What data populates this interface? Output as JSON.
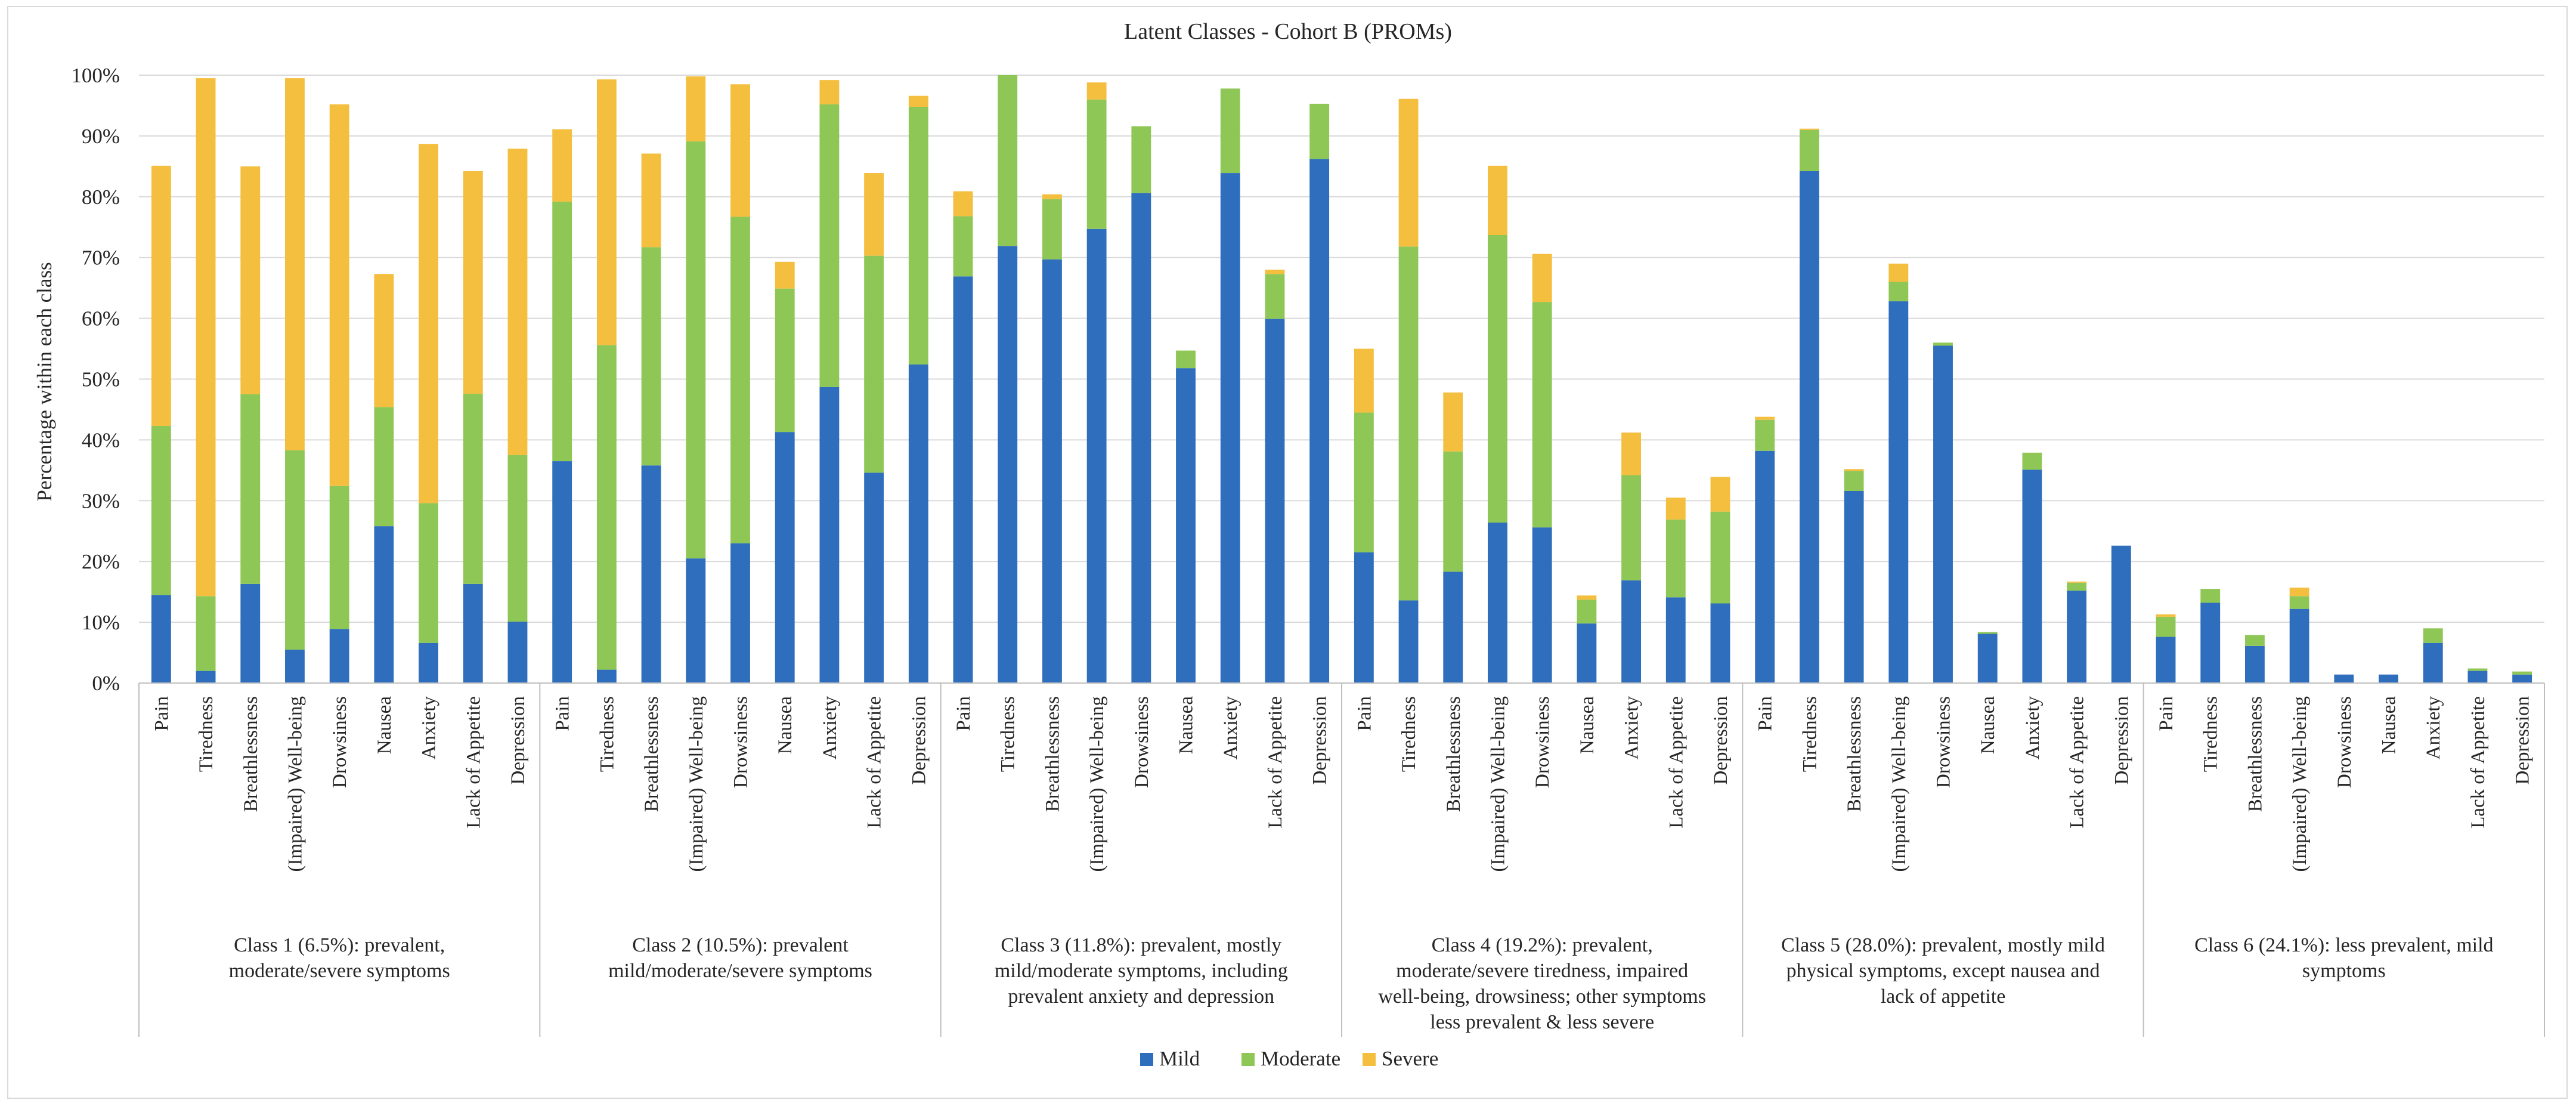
{
  "chart_data": {
    "type": "bar",
    "stacked": true,
    "title": "Latent Classes - Cohort B (PROMs)",
    "ylabel": "Percentage within each class",
    "xlabel": "",
    "ylim": [
      0,
      100
    ],
    "y_unit": "%",
    "y_ticks": [
      "0%",
      "10%",
      "20%",
      "30%",
      "40%",
      "50%",
      "60%",
      "70%",
      "80%",
      "90%",
      "100%"
    ],
    "grid": true,
    "legend_position": "bottom",
    "colors": {
      "Mild": "#2E6EBC",
      "Moderate": "#8FC757",
      "Severe": "#F4BE3E"
    },
    "series_names": [
      "Mild",
      "Moderate",
      "Severe"
    ],
    "categories": [
      "Pain",
      "Tiredness",
      "Breathlessness",
      "(Impaired) Well-being",
      "Drowsiness",
      "Nausea",
      "Anxiety",
      "Lack of Appetite",
      "Depression"
    ],
    "groups": [
      {
        "label": [
          "Class 1 (6.5%): prevalent,",
          "moderate/severe symptoms"
        ],
        "mild": [
          14.5,
          2.0,
          16.3,
          5.5,
          8.9,
          25.8,
          6.6,
          16.3,
          10.1
        ],
        "moderate": [
          27.8,
          12.3,
          31.2,
          32.8,
          23.5,
          19.6,
          23.0,
          31.3,
          27.4
        ],
        "severe": [
          42.8,
          85.2,
          37.5,
          61.2,
          62.8,
          21.9,
          59.1,
          36.6,
          50.4
        ]
      },
      {
        "label": [
          "Class 2 (10.5%): prevalent",
          "mild/moderate/severe symptoms"
        ],
        "mild": [
          36.5,
          2.2,
          35.8,
          20.5,
          23.0,
          41.3,
          48.7,
          34.6,
          52.4
        ],
        "moderate": [
          42.7,
          53.4,
          35.9,
          68.6,
          53.7,
          23.6,
          46.5,
          35.7,
          42.4
        ],
        "severe": [
          11.9,
          43.7,
          15.4,
          10.7,
          21.8,
          4.4,
          4.0,
          13.6,
          1.8
        ]
      },
      {
        "label": [
          "Class 3 (11.8%): prevalent, mostly",
          "mild/moderate symptoms, including",
          "prevalent anxiety and depression"
        ],
        "mild": [
          66.9,
          71.9,
          69.7,
          74.7,
          80.6,
          51.8,
          83.9,
          59.9,
          86.2
        ],
        "moderate": [
          9.9,
          28.1,
          9.9,
          21.3,
          11.0,
          2.9,
          13.9,
          7.4,
          9.1
        ],
        "severe": [
          4.1,
          0.0,
          0.8,
          2.8,
          0.0,
          0.0,
          0.0,
          0.7,
          0.0
        ]
      },
      {
        "label": [
          "Class 4 (19.2%): prevalent,",
          "moderate/severe tiredness, impaired",
          "well-being, drowsiness; other symptoms",
          "less prevalent & less severe"
        ],
        "mild": [
          21.5,
          13.6,
          18.3,
          26.4,
          25.6,
          9.8,
          16.9,
          14.1,
          13.1
        ],
        "moderate": [
          23.0,
          58.2,
          19.8,
          47.3,
          37.1,
          3.9,
          17.3,
          12.8,
          15.1
        ],
        "severe": [
          10.5,
          24.3,
          9.7,
          11.4,
          7.9,
          0.7,
          7.0,
          3.6,
          5.7
        ]
      },
      {
        "label": [
          "Class 5 (28.0%): prevalent, mostly mild",
          "physical symptoms, except nausea and",
          "lack of appetite"
        ],
        "mild": [
          38.2,
          84.2,
          31.6,
          62.8,
          55.5,
          8.1,
          35.1,
          15.2,
          22.6
        ],
        "moderate": [
          5.1,
          6.8,
          3.3,
          3.2,
          0.5,
          0.3,
          2.8,
          1.3,
          0.0
        ],
        "severe": [
          0.5,
          0.2,
          0.3,
          3.0,
          0.0,
          0.0,
          0.0,
          0.2,
          0.0
        ]
      },
      {
        "label": [
          "Class 6 (24.1%): less prevalent, mild",
          "symptoms"
        ],
        "mild": [
          7.6,
          13.2,
          6.1,
          12.2,
          1.4,
          1.4,
          6.6,
          2.0,
          1.4
        ],
        "moderate": [
          3.3,
          2.3,
          1.8,
          2.1,
          0.0,
          0.0,
          2.4,
          0.4,
          0.5
        ],
        "severe": [
          0.4,
          0.0,
          0.0,
          1.4,
          0.0,
          0.0,
          0.0,
          0.0,
          0.0
        ]
      }
    ]
  }
}
